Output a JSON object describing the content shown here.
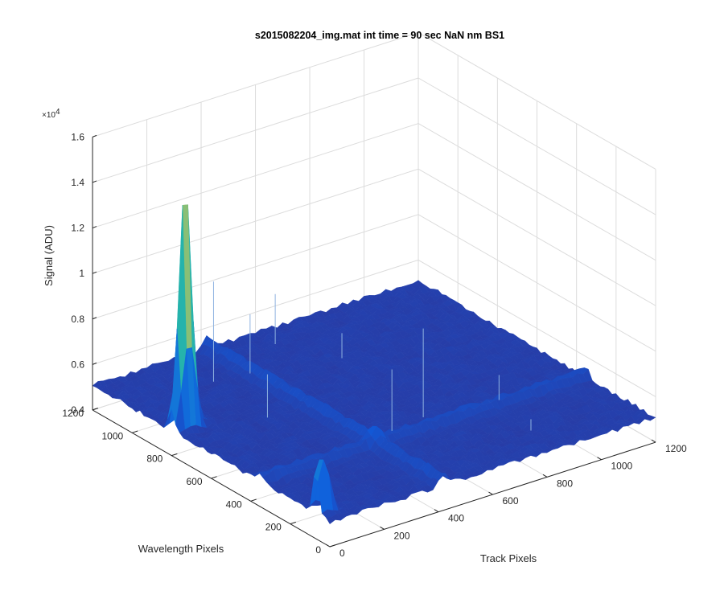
{
  "chart_data": {
    "type": "surface",
    "title": "s2015082204_img.mat int time = 90 sec  NaN nm BS1",
    "xlabel": "Track Pixels",
    "ylabel": "Wavelength Pixels",
    "zlabel": "Signal (ADU)",
    "z_exponent_label": "×10",
    "z_exponent_power": "4",
    "z_multiplier": 10000,
    "xlim": [
      0,
      1200
    ],
    "ylim": [
      0,
      1200
    ],
    "zlim": [
      0.4,
      1.6
    ],
    "xticks": [
      "0",
      "200",
      "400",
      "600",
      "800",
      "1000",
      "1200"
    ],
    "yticks": [
      "0",
      "200",
      "400",
      "600",
      "800",
      "1000",
      "1200"
    ],
    "zticks": [
      "0.4",
      "0.6",
      "0.8",
      "1",
      "1.2",
      "1.4",
      "1.6"
    ],
    "grid": true,
    "colormap": "parula",
    "colormap_colors": [
      "#352a87",
      "#0f5cdd",
      "#1481d6",
      "#06a4ca",
      "#2eb7a4",
      "#87bf77",
      "#d1bb59",
      "#fec832",
      "#f9fb0e"
    ],
    "baseline": 0.51,
    "peaks": [
      {
        "x": 50,
        "y": 800,
        "z": 1.58
      },
      {
        "x": 20,
        "y": 70,
        "z": 0.8
      }
    ]
  }
}
